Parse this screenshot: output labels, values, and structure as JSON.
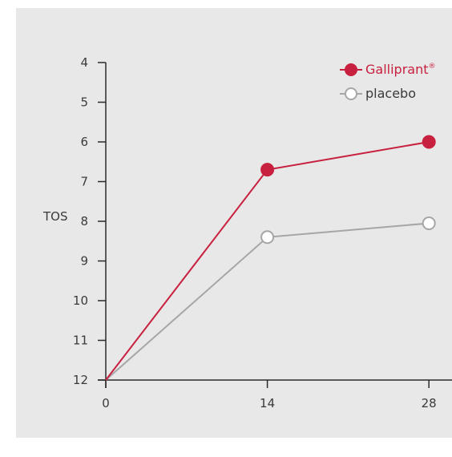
{
  "chart_data": {
    "type": "line",
    "title": "",
    "xlabel": "",
    "ylabel": "TOS",
    "x": [
      0,
      14,
      28
    ],
    "x_ticks": [
      "0",
      "14",
      "28"
    ],
    "y_ticks": [
      "4",
      "5",
      "6",
      "7",
      "8",
      "9",
      "10",
      "11",
      "12"
    ],
    "ylim": [
      12,
      4
    ],
    "y_inverted": true,
    "grid": false,
    "legend_position": "top-right",
    "series": [
      {
        "name": "Galliprant",
        "name_superscript": "®",
        "values": [
          12,
          6.7,
          6.0
        ],
        "color": "#c8203f",
        "marker": "filled-circle"
      },
      {
        "name": "placebo",
        "values": [
          12,
          8.4,
          8.05
        ],
        "color": "#a6a6a6",
        "marker": "open-circle"
      }
    ]
  }
}
